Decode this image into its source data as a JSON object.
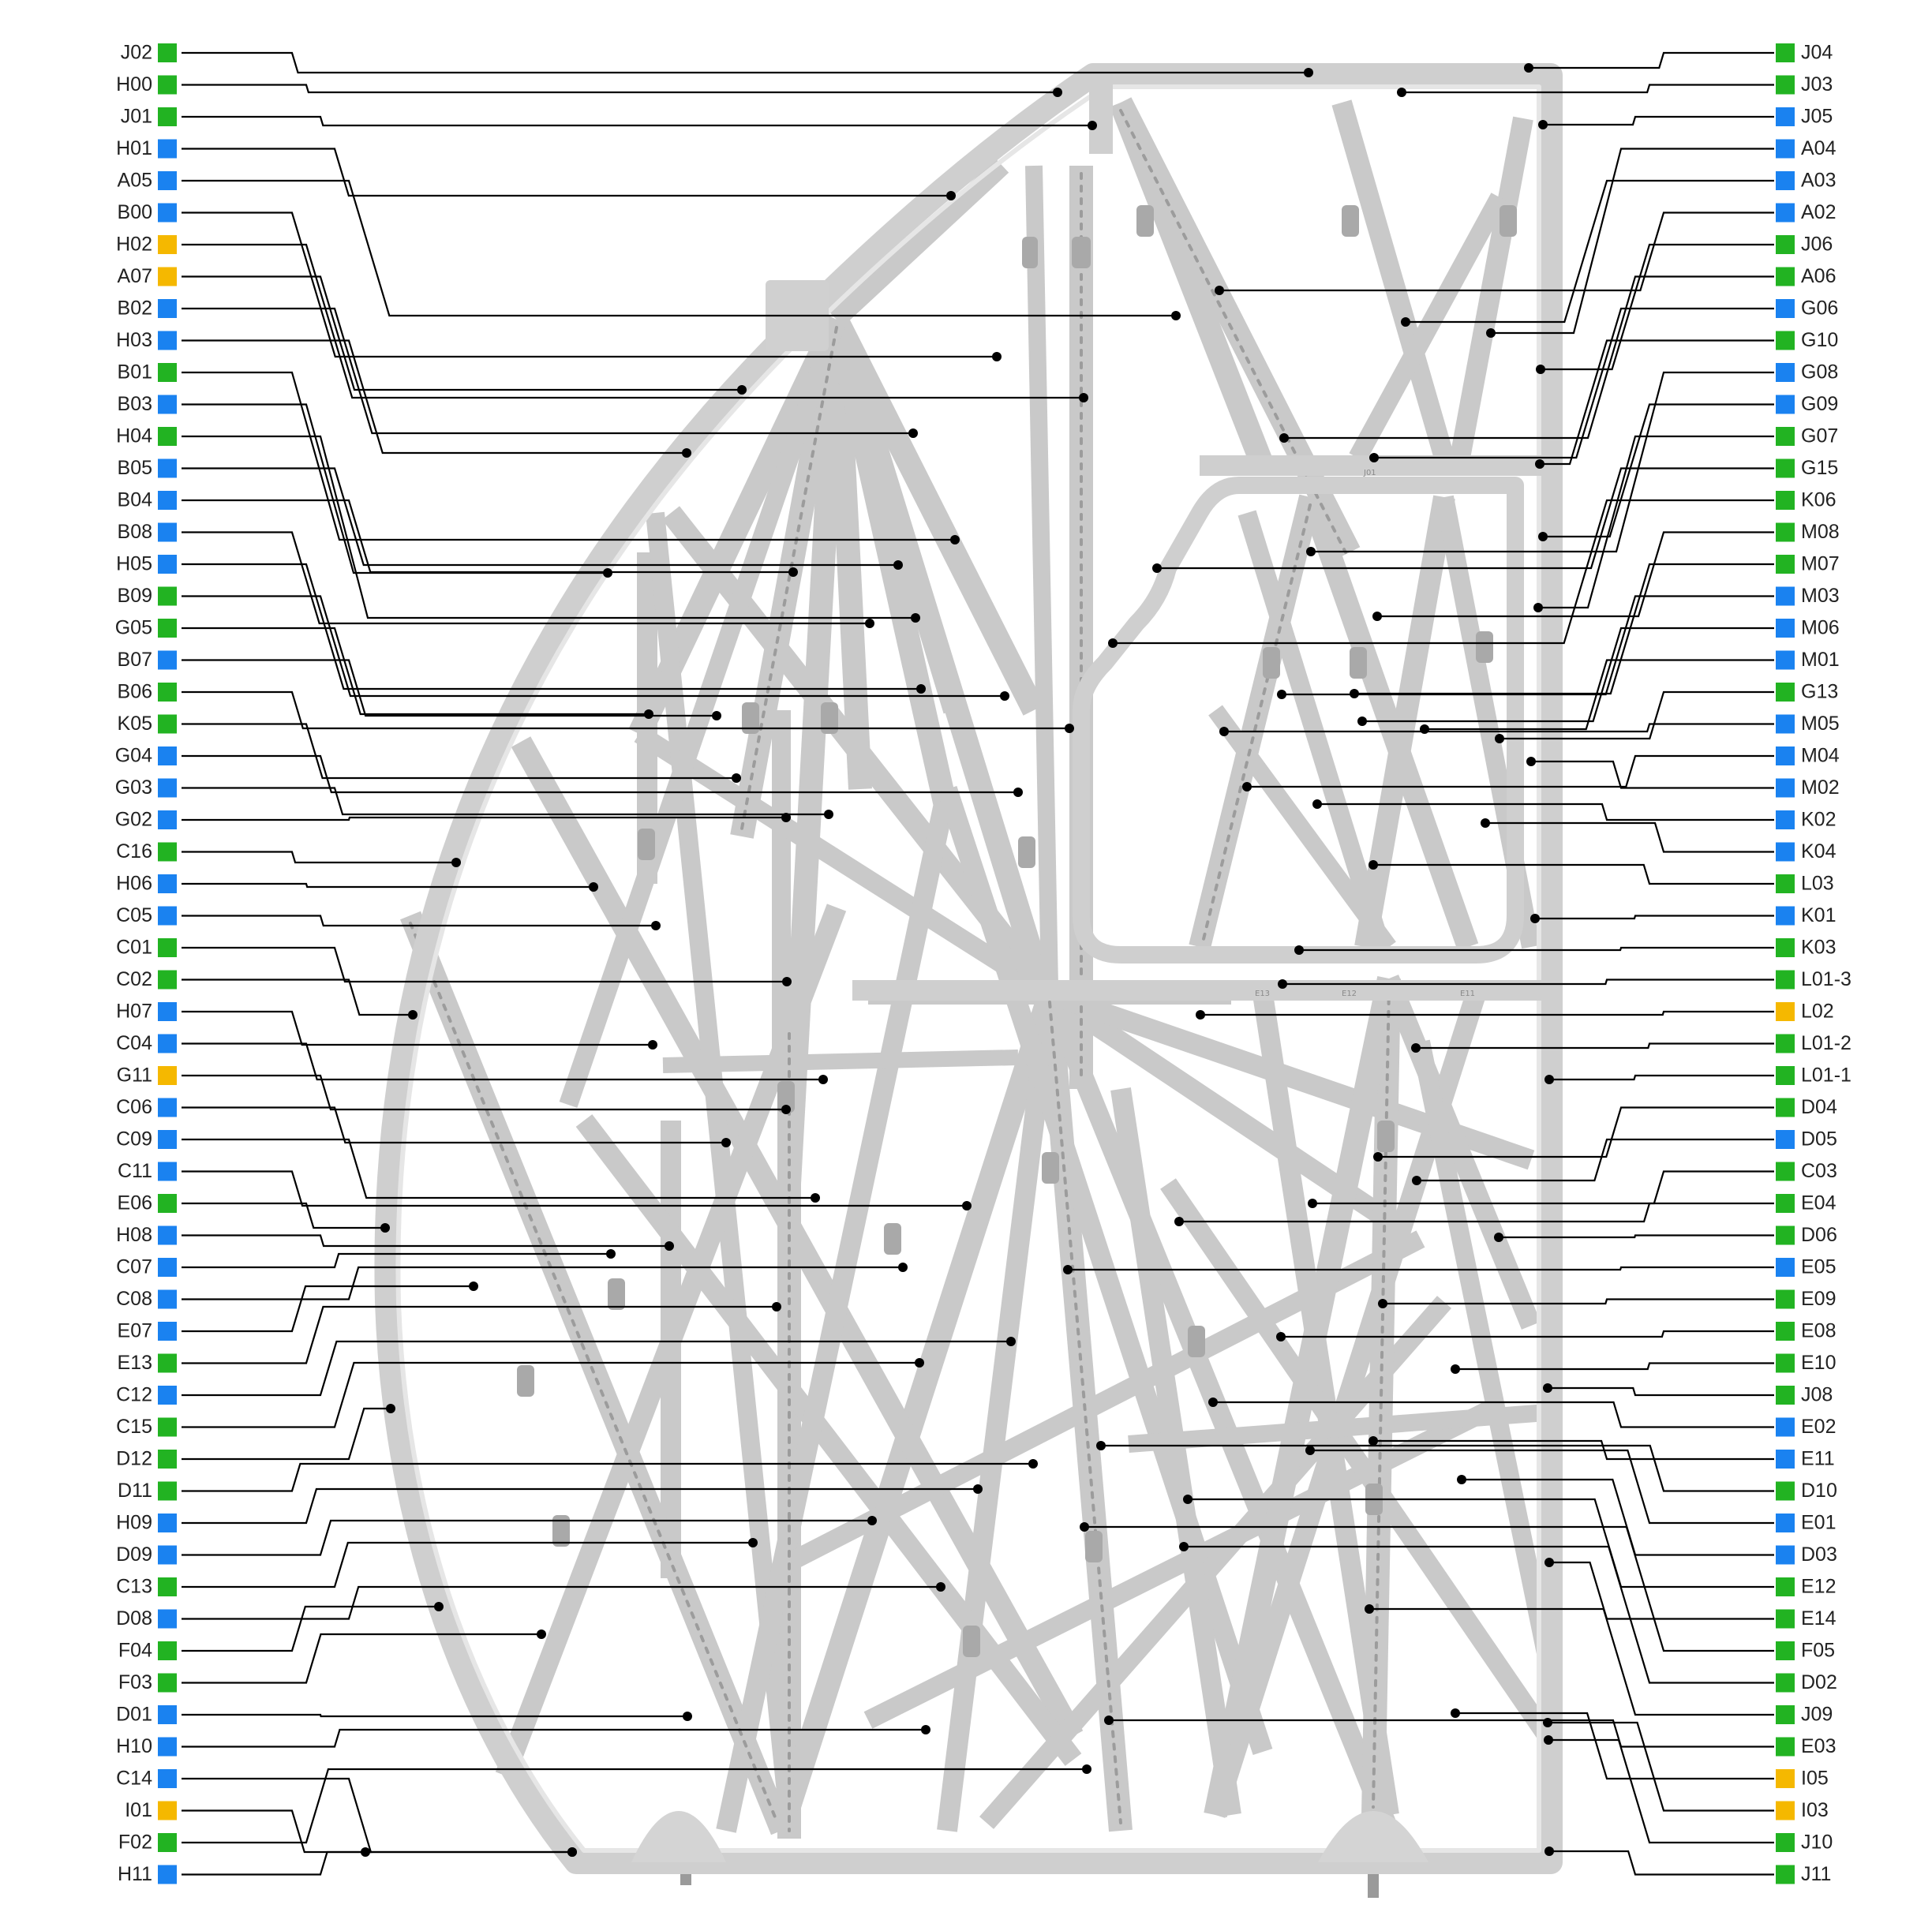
{
  "colors": {
    "green": "#22b322",
    "blue": "#1a82f0",
    "yellow": "#f5b800",
    "structure": "#d2d2d2",
    "structure_dark": "#9c9c9c"
  },
  "left_labels": [
    {
      "id": "J02",
      "color": "green"
    },
    {
      "id": "H00",
      "color": "green"
    },
    {
      "id": "J01",
      "color": "green"
    },
    {
      "id": "H01",
      "color": "blue"
    },
    {
      "id": "A05",
      "color": "blue"
    },
    {
      "id": "B00",
      "color": "blue"
    },
    {
      "id": "H02",
      "color": "yellow"
    },
    {
      "id": "A07",
      "color": "yellow"
    },
    {
      "id": "B02",
      "color": "blue"
    },
    {
      "id": "H03",
      "color": "blue"
    },
    {
      "id": "B01",
      "color": "green"
    },
    {
      "id": "B03",
      "color": "blue"
    },
    {
      "id": "H04",
      "color": "green"
    },
    {
      "id": "B05",
      "color": "blue"
    },
    {
      "id": "B04",
      "color": "blue"
    },
    {
      "id": "B08",
      "color": "blue"
    },
    {
      "id": "H05",
      "color": "blue"
    },
    {
      "id": "B09",
      "color": "green"
    },
    {
      "id": "G05",
      "color": "green"
    },
    {
      "id": "B07",
      "color": "blue"
    },
    {
      "id": "B06",
      "color": "green"
    },
    {
      "id": "K05",
      "color": "green"
    },
    {
      "id": "G04",
      "color": "blue"
    },
    {
      "id": "G03",
      "color": "blue"
    },
    {
      "id": "G02",
      "color": "blue"
    },
    {
      "id": "C16",
      "color": "green"
    },
    {
      "id": "H06",
      "color": "blue"
    },
    {
      "id": "C05",
      "color": "blue"
    },
    {
      "id": "C01",
      "color": "green"
    },
    {
      "id": "C02",
      "color": "green"
    },
    {
      "id": "H07",
      "color": "blue"
    },
    {
      "id": "C04",
      "color": "blue"
    },
    {
      "id": "G11",
      "color": "yellow"
    },
    {
      "id": "C06",
      "color": "blue"
    },
    {
      "id": "C09",
      "color": "blue"
    },
    {
      "id": "C11",
      "color": "blue"
    },
    {
      "id": "E06",
      "color": "green"
    },
    {
      "id": "H08",
      "color": "blue"
    },
    {
      "id": "C07",
      "color": "blue"
    },
    {
      "id": "C08",
      "color": "blue"
    },
    {
      "id": "E07",
      "color": "blue"
    },
    {
      "id": "E13",
      "color": "green"
    },
    {
      "id": "C12",
      "color": "blue"
    },
    {
      "id": "C15",
      "color": "green"
    },
    {
      "id": "D12",
      "color": "green"
    },
    {
      "id": "D11",
      "color": "green"
    },
    {
      "id": "H09",
      "color": "blue"
    },
    {
      "id": "D09",
      "color": "blue"
    },
    {
      "id": "C13",
      "color": "green"
    },
    {
      "id": "D08",
      "color": "blue"
    },
    {
      "id": "F04",
      "color": "green"
    },
    {
      "id": "F03",
      "color": "green"
    },
    {
      "id": "D01",
      "color": "blue"
    },
    {
      "id": "H10",
      "color": "blue"
    },
    {
      "id": "C14",
      "color": "blue"
    },
    {
      "id": "I01",
      "color": "yellow"
    },
    {
      "id": "F02",
      "color": "green"
    },
    {
      "id": "H11",
      "color": "blue"
    }
  ],
  "right_labels": [
    {
      "id": "J04",
      "color": "green"
    },
    {
      "id": "J03",
      "color": "green"
    },
    {
      "id": "J05",
      "color": "blue"
    },
    {
      "id": "A04",
      "color": "blue"
    },
    {
      "id": "A03",
      "color": "blue"
    },
    {
      "id": "A02",
      "color": "blue"
    },
    {
      "id": "J06",
      "color": "green"
    },
    {
      "id": "A06",
      "color": "green"
    },
    {
      "id": "G06",
      "color": "blue"
    },
    {
      "id": "G10",
      "color": "green"
    },
    {
      "id": "G08",
      "color": "blue"
    },
    {
      "id": "G09",
      "color": "blue"
    },
    {
      "id": "G07",
      "color": "green"
    },
    {
      "id": "G15",
      "color": "green"
    },
    {
      "id": "K06",
      "color": "green"
    },
    {
      "id": "M08",
      "color": "green"
    },
    {
      "id": "M07",
      "color": "green"
    },
    {
      "id": "M03",
      "color": "blue"
    },
    {
      "id": "M06",
      "color": "blue"
    },
    {
      "id": "M01",
      "color": "blue"
    },
    {
      "id": "G13",
      "color": "green"
    },
    {
      "id": "M05",
      "color": "blue"
    },
    {
      "id": "M04",
      "color": "blue"
    },
    {
      "id": "M02",
      "color": "blue"
    },
    {
      "id": "K02",
      "color": "blue"
    },
    {
      "id": "K04",
      "color": "blue"
    },
    {
      "id": "L03",
      "color": "green"
    },
    {
      "id": "K01",
      "color": "blue"
    },
    {
      "id": "K03",
      "color": "green"
    },
    {
      "id": "L01-3",
      "color": "green"
    },
    {
      "id": "L02",
      "color": "yellow"
    },
    {
      "id": "L01-2",
      "color": "green"
    },
    {
      "id": "L01-1",
      "color": "green"
    },
    {
      "id": "D04",
      "color": "green"
    },
    {
      "id": "D05",
      "color": "blue"
    },
    {
      "id": "C03",
      "color": "green"
    },
    {
      "id": "E04",
      "color": "green"
    },
    {
      "id": "D06",
      "color": "green"
    },
    {
      "id": "E05",
      "color": "blue"
    },
    {
      "id": "E09",
      "color": "green"
    },
    {
      "id": "E08",
      "color": "green"
    },
    {
      "id": "E10",
      "color": "green"
    },
    {
      "id": "J08",
      "color": "green"
    },
    {
      "id": "E02",
      "color": "blue"
    },
    {
      "id": "E11",
      "color": "blue"
    },
    {
      "id": "D10",
      "color": "green"
    },
    {
      "id": "E01",
      "color": "blue"
    },
    {
      "id": "D03",
      "color": "blue"
    },
    {
      "id": "E12",
      "color": "green"
    },
    {
      "id": "E14",
      "color": "green"
    },
    {
      "id": "F05",
      "color": "green"
    },
    {
      "id": "D02",
      "color": "green"
    },
    {
      "id": "J09",
      "color": "green"
    },
    {
      "id": "E03",
      "color": "green"
    },
    {
      "id": "I05",
      "color": "yellow"
    },
    {
      "id": "I03",
      "color": "yellow"
    },
    {
      "id": "J10",
      "color": "green"
    },
    {
      "id": "J11",
      "color": "green"
    }
  ],
  "frame_markings": [
    "J01",
    "E13",
    "E12",
    "E11"
  ]
}
